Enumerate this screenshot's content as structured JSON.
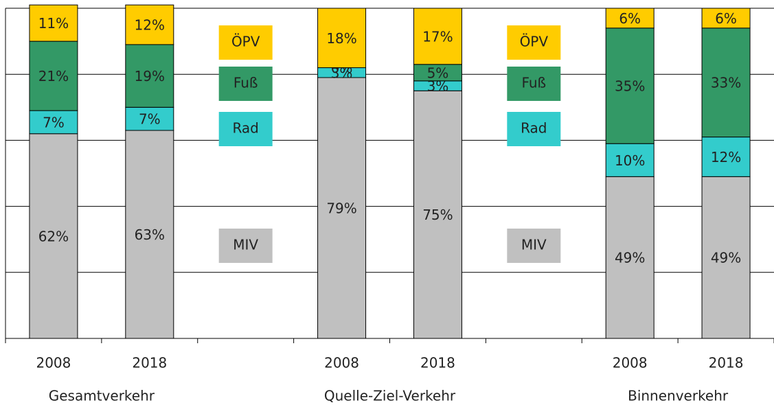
{
  "chart_data": {
    "type": "stacked_bar",
    "categories": [
      "2008",
      "2018",
      null,
      "2008",
      "2018",
      null,
      "2008",
      "2018"
    ],
    "groups": [
      "Gesamtverkehr",
      "Quelle-Ziel-Verkehr",
      "Binnenverkehr"
    ],
    "series": [
      {
        "name": "MIV",
        "color": "#c0c0c0",
        "values": [
          62,
          63,
          null,
          79,
          75,
          null,
          49,
          49
        ],
        "value_labels": [
          "62%",
          "63%",
          null,
          "79%",
          "75%",
          null,
          "49%",
          "49%"
        ]
      },
      {
        "name": "Rad",
        "color": "#33cccc",
        "values": [
          7,
          7,
          null,
          3,
          3,
          null,
          10,
          12
        ],
        "value_labels": [
          "7%",
          "7%",
          null,
          "3%",
          "3%",
          null,
          "10%",
          "12%"
        ]
      },
      {
        "name": "Fuß",
        "color": "#339966",
        "values": [
          21,
          19,
          null,
          0,
          5,
          null,
          35,
          33
        ],
        "value_labels": [
          "21%",
          "19%",
          null,
          "0%",
          "5%",
          null,
          "35%",
          "33%"
        ]
      },
      {
        "name": "ÖPV",
        "color": "#ffcc00",
        "values": [
          11,
          12,
          null,
          18,
          17,
          null,
          6,
          6
        ],
        "value_labels": [
          "11%",
          "12%",
          null,
          "18%",
          "17%",
          null,
          "6%",
          "6%"
        ]
      }
    ],
    "ylim": [
      0,
      100
    ],
    "yticks": [
      0,
      20,
      40,
      60,
      80,
      100
    ],
    "grid": true
  }
}
